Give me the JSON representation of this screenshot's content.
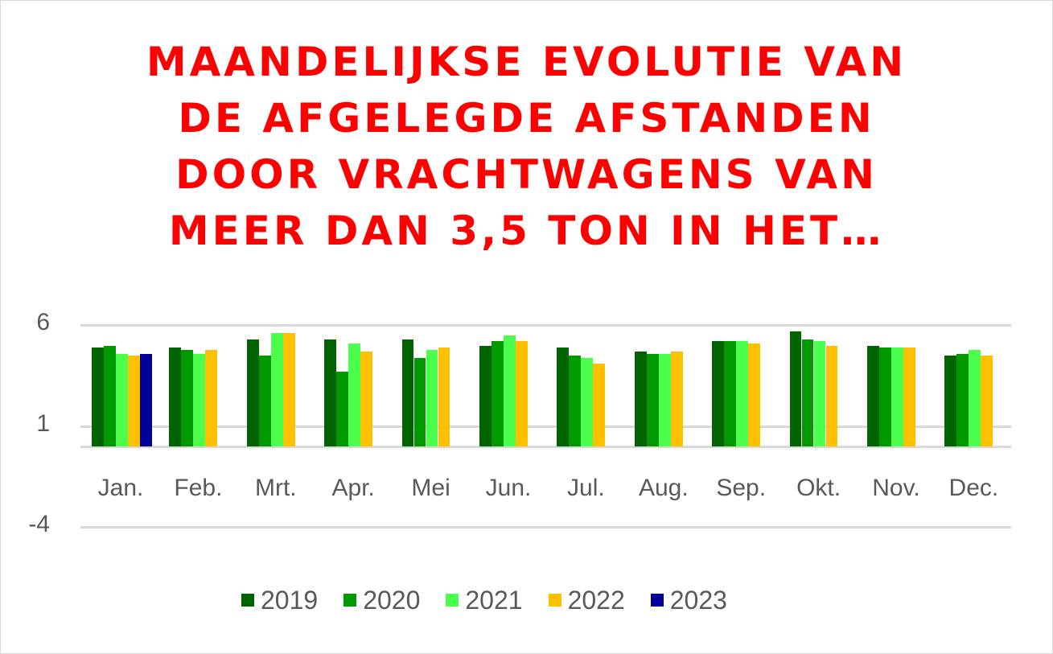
{
  "chart_data": {
    "type": "bar",
    "title": "MAANDELIJKSE EVOLUTIE VAN DE AFGELEGDE AFSTANDEN DOOR VRACHTWAGENS VAN MEER DAN 3,5 TON IN HET…",
    "title_lines": [
      "MAANDELIJKSE EVOLUTIE VAN",
      "DE AFGELEGDE AFSTANDEN",
      "DOOR VRACHTWAGENS VAN",
      "MEER DAN 3,5 TON IN HET…"
    ],
    "xlabel": "",
    "ylabel": "",
    "categories": [
      "Jan.",
      "Feb.",
      "Mrt.",
      "Apr.",
      "Mei",
      "Jun.",
      "Jul.",
      "Aug.",
      "Sep.",
      "Okt.",
      "Nov.",
      "Dec."
    ],
    "y_ticks": [
      6,
      1,
      -4
    ],
    "ylim": [
      -4,
      6
    ],
    "grid": true,
    "legend_position": "bottom",
    "series": [
      {
        "name": "2019",
        "color": "#006400",
        "values": [
          4.9,
          4.9,
          5.3,
          5.3,
          5.3,
          5.0,
          4.9,
          4.7,
          5.2,
          5.7,
          5.0,
          4.5
        ]
      },
      {
        "name": "2020",
        "color": "#009900",
        "values": [
          5.0,
          4.8,
          4.5,
          3.7,
          4.4,
          5.2,
          4.5,
          4.6,
          5.2,
          5.3,
          4.9,
          4.6
        ]
      },
      {
        "name": "2021",
        "color": "#4cff4c",
        "values": [
          4.6,
          4.6,
          5.6,
          5.1,
          4.8,
          5.5,
          4.4,
          4.6,
          5.2,
          5.2,
          4.9,
          4.8
        ]
      },
      {
        "name": "2022",
        "color": "#ffc000",
        "values": [
          4.5,
          4.8,
          5.6,
          4.7,
          4.9,
          5.2,
          4.1,
          4.7,
          5.1,
          5.0,
          4.9,
          4.5
        ]
      },
      {
        "name": "2023",
        "color": "#000099",
        "values": [
          4.6,
          null,
          null,
          null,
          null,
          null,
          null,
          null,
          null,
          null,
          null,
          null
        ]
      }
    ]
  }
}
